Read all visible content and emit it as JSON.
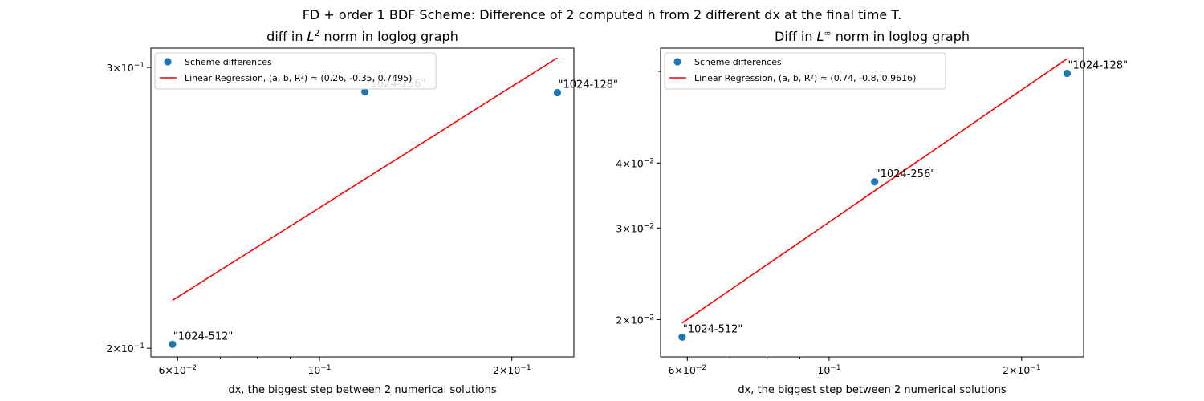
{
  "figure": {
    "suptitle": "FD + order 1 BDF Scheme: Difference of 2 computed h from 2 different dx at the final time T."
  },
  "chart_data": [
    {
      "type": "scatter",
      "scale": "loglog",
      "title_prefix": "diff in ",
      "title_norm_base": "L",
      "title_norm_sup": "2",
      "title_suffix": " norm in loglog graph",
      "xlabel": "dx, the biggest step between 2 numerical solutions",
      "ylabel": "",
      "xlim": [
        0.0545,
        0.25
      ],
      "ylim": [
        0.1975,
        0.3085
      ],
      "xticks": [
        {
          "value": 0.06,
          "base": "6",
          "times": "×",
          "ten": "10",
          "exp": "−2"
        },
        {
          "value": 0.1,
          "base": "",
          "times": "",
          "ten": "10",
          "exp": "−1"
        },
        {
          "value": 0.2,
          "base": "2",
          "times": "×",
          "ten": "10",
          "exp": "−1"
        }
      ],
      "xminor": [
        0.07,
        0.08,
        0.09
      ],
      "yticks": [
        {
          "value": 0.2,
          "base": "2",
          "times": "×",
          "ten": "10",
          "exp": "−1"
        },
        {
          "value": 0.3,
          "base": "3",
          "times": "×",
          "ten": "10",
          "exp": "−1"
        }
      ],
      "yminor": [],
      "points": [
        {
          "x": 0.0589,
          "y": 0.2011,
          "label": "\"1024-512\""
        },
        {
          "x": 0.1178,
          "y": 0.2896,
          "label": "\"1024-256\""
        },
        {
          "x": 0.2356,
          "y": 0.2893,
          "label": "\"1024-128\""
        }
      ],
      "series": [
        {
          "name": "Scheme differences",
          "kind": "scatter",
          "color": "#1f77b4"
        },
        {
          "name": "Linear Regression, (a, b, R²) ≈ (0.26, -0.35, 0.7495)",
          "kind": "line",
          "color": "#ff0000",
          "line_x": [
            0.0589,
            0.2356
          ],
          "line_y": [
            0.2143,
            0.3042
          ]
        }
      ],
      "legend_loc": "upper left",
      "grid": false
    },
    {
      "type": "scatter",
      "scale": "loglog",
      "title_prefix": "Diff in ",
      "title_norm_base": "L",
      "title_norm_sup": "∞",
      "title_suffix": " norm in loglog graph",
      "xlabel": "dx, the biggest step between 2 numerical solutions",
      "ylabel": "",
      "xlim": [
        0.0545,
        0.25
      ],
      "ylim": [
        0.01695,
        0.06655
      ],
      "xticks": [
        {
          "value": 0.06,
          "base": "6",
          "times": "×",
          "ten": "10",
          "exp": "−2"
        },
        {
          "value": 0.1,
          "base": "",
          "times": "",
          "ten": "10",
          "exp": "−1"
        },
        {
          "value": 0.2,
          "base": "2",
          "times": "×",
          "ten": "10",
          "exp": "−1"
        }
      ],
      "xminor": [
        0.07,
        0.08,
        0.09
      ],
      "yticks": [
        {
          "value": 0.02,
          "base": "2",
          "times": "×",
          "ten": "10",
          "exp": "−2"
        },
        {
          "value": 0.03,
          "base": "3",
          "times": "×",
          "ten": "10",
          "exp": "−2"
        },
        {
          "value": 0.04,
          "base": "4",
          "times": "×",
          "ten": "10",
          "exp": "−2"
        }
      ],
      "yminor": [
        0.06
      ],
      "points": [
        {
          "x": 0.0589,
          "y": 0.0185,
          "label": "\"1024-512\""
        },
        {
          "x": 0.1178,
          "y": 0.0368,
          "label": "\"1024-256\""
        },
        {
          "x": 0.2356,
          "y": 0.0595,
          "label": "\"1024-128\""
        }
      ],
      "series": [
        {
          "name": "Scheme differences",
          "kind": "scatter",
          "color": "#1f77b4"
        },
        {
          "name": "Linear Regression, (a, b, R²) ≈ (0.74, -0.8, 0.9616)",
          "kind": "line",
          "color": "#ff0000",
          "line_x": [
            0.0589,
            0.2356
          ],
          "line_y": [
            0.0197,
            0.0635
          ]
        }
      ],
      "legend_loc": "upper left",
      "grid": false
    }
  ]
}
